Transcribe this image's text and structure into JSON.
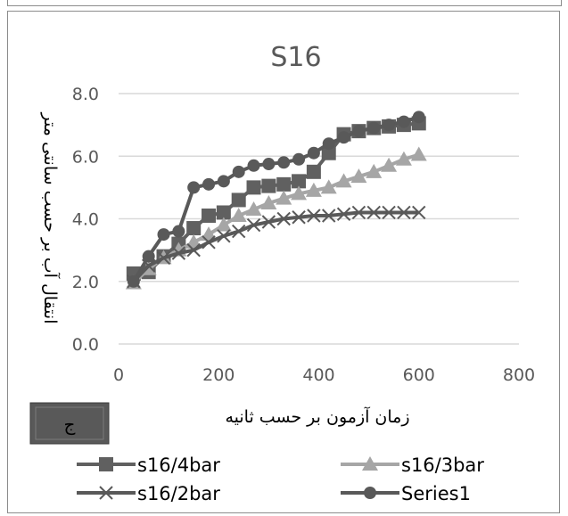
{
  "chart_data": {
    "type": "line",
    "title": "S16",
    "xlabel": "زمان آزمون بر حسب ثانیه",
    "ylabel": "انتقال آب بر حسب سانتی متر",
    "xlim": [
      0,
      800
    ],
    "ylim": [
      0,
      8
    ],
    "x_ticks": [
      "0",
      "200",
      "400",
      "600",
      "800"
    ],
    "y_ticks": [
      "0.0",
      "2.0",
      "4.0",
      "6.0",
      "8.0"
    ],
    "grid": "horizontal",
    "legend_position": "bottom",
    "tag_label": "ج",
    "series": [
      {
        "name": "s16/4bar",
        "color": "#606060",
        "marker": "square",
        "x": [
          30,
          60,
          90,
          120,
          150,
          180,
          210,
          240,
          270,
          300,
          330,
          360,
          390,
          420,
          450,
          480,
          510,
          540,
          570,
          600
        ],
        "y": [
          2.25,
          2.3,
          2.8,
          3.2,
          3.7,
          4.1,
          4.2,
          4.6,
          5.0,
          5.05,
          5.1,
          5.2,
          5.5,
          6.1,
          6.7,
          6.8,
          6.9,
          6.95,
          7.0,
          7.05
        ]
      },
      {
        "name": "s16/3bar",
        "color": "#a6a6a6",
        "marker": "triangle",
        "x": [
          30,
          60,
          90,
          120,
          150,
          180,
          210,
          240,
          270,
          300,
          330,
          360,
          390,
          420,
          450,
          480,
          510,
          540,
          570,
          600
        ],
        "y": [
          1.95,
          2.4,
          2.75,
          3.0,
          3.25,
          3.5,
          3.8,
          4.1,
          4.3,
          4.5,
          4.65,
          4.8,
          4.9,
          5.0,
          5.2,
          5.35,
          5.5,
          5.7,
          5.9,
          6.05
        ]
      },
      {
        "name": "s16/2bar",
        "color": "#595959",
        "marker": "x",
        "x": [
          30,
          60,
          90,
          120,
          150,
          180,
          210,
          240,
          270,
          300,
          330,
          360,
          390,
          420,
          450,
          480,
          510,
          540,
          570,
          600
        ],
        "y": [
          2.0,
          2.5,
          2.75,
          2.9,
          3.0,
          3.25,
          3.45,
          3.6,
          3.8,
          3.9,
          4.0,
          4.05,
          4.1,
          4.1,
          4.15,
          4.2,
          4.2,
          4.2,
          4.2,
          4.2
        ]
      },
      {
        "name": "Series1",
        "color": "#595959",
        "marker": "circle",
        "x": [
          30,
          60,
          90,
          120,
          150,
          180,
          210,
          240,
          270,
          300,
          330,
          360,
          390,
          420,
          450,
          480,
          510,
          540,
          570,
          600
        ],
        "y": [
          2.0,
          2.8,
          3.5,
          3.6,
          5.0,
          5.1,
          5.2,
          5.5,
          5.7,
          5.75,
          5.8,
          5.9,
          6.1,
          6.4,
          6.6,
          6.8,
          6.9,
          7.0,
          7.1,
          7.25
        ]
      }
    ]
  }
}
